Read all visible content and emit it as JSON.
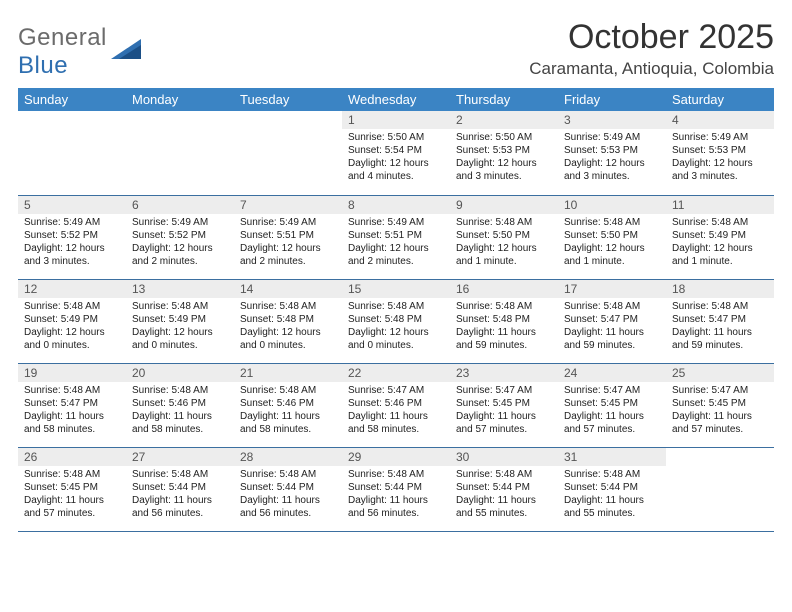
{
  "brand": {
    "text1": "General",
    "text2": "Blue"
  },
  "title": "October 2025",
  "location": "Caramanta, Antioquia, Colombia",
  "colors": {
    "header_bg": "#3b84c4",
    "daynum_bg": "#ededed",
    "row_border": "#3b6fa0",
    "brand_gray": "#6b6b6b",
    "brand_blue": "#2f6fb0"
  },
  "day_headers": [
    "Sunday",
    "Monday",
    "Tuesday",
    "Wednesday",
    "Thursday",
    "Friday",
    "Saturday"
  ],
  "weeks": [
    [
      {
        "n": "",
        "sr": "",
        "ss": "",
        "dl": ""
      },
      {
        "n": "",
        "sr": "",
        "ss": "",
        "dl": ""
      },
      {
        "n": "",
        "sr": "",
        "ss": "",
        "dl": ""
      },
      {
        "n": "1",
        "sr": "5:50 AM",
        "ss": "5:54 PM",
        "dl": "12 hours and 4 minutes."
      },
      {
        "n": "2",
        "sr": "5:50 AM",
        "ss": "5:53 PM",
        "dl": "12 hours and 3 minutes."
      },
      {
        "n": "3",
        "sr": "5:49 AM",
        "ss": "5:53 PM",
        "dl": "12 hours and 3 minutes."
      },
      {
        "n": "4",
        "sr": "5:49 AM",
        "ss": "5:53 PM",
        "dl": "12 hours and 3 minutes."
      }
    ],
    [
      {
        "n": "5",
        "sr": "5:49 AM",
        "ss": "5:52 PM",
        "dl": "12 hours and 3 minutes."
      },
      {
        "n": "6",
        "sr": "5:49 AM",
        "ss": "5:52 PM",
        "dl": "12 hours and 2 minutes."
      },
      {
        "n": "7",
        "sr": "5:49 AM",
        "ss": "5:51 PM",
        "dl": "12 hours and 2 minutes."
      },
      {
        "n": "8",
        "sr": "5:49 AM",
        "ss": "5:51 PM",
        "dl": "12 hours and 2 minutes."
      },
      {
        "n": "9",
        "sr": "5:48 AM",
        "ss": "5:50 PM",
        "dl": "12 hours and 1 minute."
      },
      {
        "n": "10",
        "sr": "5:48 AM",
        "ss": "5:50 PM",
        "dl": "12 hours and 1 minute."
      },
      {
        "n": "11",
        "sr": "5:48 AM",
        "ss": "5:49 PM",
        "dl": "12 hours and 1 minute."
      }
    ],
    [
      {
        "n": "12",
        "sr": "5:48 AM",
        "ss": "5:49 PM",
        "dl": "12 hours and 0 minutes."
      },
      {
        "n": "13",
        "sr": "5:48 AM",
        "ss": "5:49 PM",
        "dl": "12 hours and 0 minutes."
      },
      {
        "n": "14",
        "sr": "5:48 AM",
        "ss": "5:48 PM",
        "dl": "12 hours and 0 minutes."
      },
      {
        "n": "15",
        "sr": "5:48 AM",
        "ss": "5:48 PM",
        "dl": "12 hours and 0 minutes."
      },
      {
        "n": "16",
        "sr": "5:48 AM",
        "ss": "5:48 PM",
        "dl": "11 hours and 59 minutes."
      },
      {
        "n": "17",
        "sr": "5:48 AM",
        "ss": "5:47 PM",
        "dl": "11 hours and 59 minutes."
      },
      {
        "n": "18",
        "sr": "5:48 AM",
        "ss": "5:47 PM",
        "dl": "11 hours and 59 minutes."
      }
    ],
    [
      {
        "n": "19",
        "sr": "5:48 AM",
        "ss": "5:47 PM",
        "dl": "11 hours and 58 minutes."
      },
      {
        "n": "20",
        "sr": "5:48 AM",
        "ss": "5:46 PM",
        "dl": "11 hours and 58 minutes."
      },
      {
        "n": "21",
        "sr": "5:48 AM",
        "ss": "5:46 PM",
        "dl": "11 hours and 58 minutes."
      },
      {
        "n": "22",
        "sr": "5:47 AM",
        "ss": "5:46 PM",
        "dl": "11 hours and 58 minutes."
      },
      {
        "n": "23",
        "sr": "5:47 AM",
        "ss": "5:45 PM",
        "dl": "11 hours and 57 minutes."
      },
      {
        "n": "24",
        "sr": "5:47 AM",
        "ss": "5:45 PM",
        "dl": "11 hours and 57 minutes."
      },
      {
        "n": "25",
        "sr": "5:47 AM",
        "ss": "5:45 PM",
        "dl": "11 hours and 57 minutes."
      }
    ],
    [
      {
        "n": "26",
        "sr": "5:48 AM",
        "ss": "5:45 PM",
        "dl": "11 hours and 57 minutes."
      },
      {
        "n": "27",
        "sr": "5:48 AM",
        "ss": "5:44 PM",
        "dl": "11 hours and 56 minutes."
      },
      {
        "n": "28",
        "sr": "5:48 AM",
        "ss": "5:44 PM",
        "dl": "11 hours and 56 minutes."
      },
      {
        "n": "29",
        "sr": "5:48 AM",
        "ss": "5:44 PM",
        "dl": "11 hours and 56 minutes."
      },
      {
        "n": "30",
        "sr": "5:48 AM",
        "ss": "5:44 PM",
        "dl": "11 hours and 55 minutes."
      },
      {
        "n": "31",
        "sr": "5:48 AM",
        "ss": "5:44 PM",
        "dl": "11 hours and 55 minutes."
      },
      {
        "n": "",
        "sr": "",
        "ss": "",
        "dl": ""
      }
    ]
  ],
  "labels": {
    "sunrise": "Sunrise:",
    "sunset": "Sunset:",
    "daylight": "Daylight:"
  }
}
